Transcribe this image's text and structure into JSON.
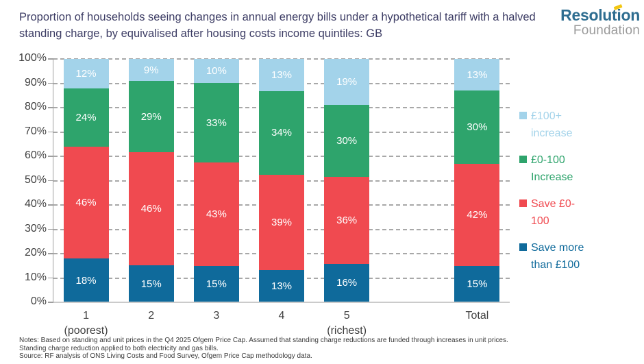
{
  "title": "Proportion of households seeing changes in annual energy bills under a hypothetical tariff with a halved standing charge, by equivalised after housing costs income quintiles: GB",
  "logo": {
    "primary": "Resolution",
    "secondary": "Foundation"
  },
  "colors": {
    "series_light_blue": "#A3D3EA",
    "series_green": "#2EA46C",
    "series_red": "#F04A50",
    "series_dark_blue": "#0F6A9B",
    "title_text": "#3C3C64",
    "axis_text": "#3F3F3F",
    "logo_teal": "#2E6D90",
    "logo_gray": "#9B9B9B",
    "logo_accent_yellow": "#F3C713"
  },
  "chart_data": {
    "type": "bar",
    "stacked": true,
    "unit": "%",
    "ylim": [
      0,
      100
    ],
    "y_tick_step": 10,
    "y_tick_labels": [
      "0%",
      "10%",
      "20%",
      "30%",
      "40%",
      "50%",
      "60%",
      "70%",
      "80%",
      "90%",
      "100%"
    ],
    "grid": "dashed-horizontal",
    "legend_position": "right",
    "n_slots": 7,
    "categories": [
      {
        "label": "1",
        "sublabel": "(poorest)",
        "slot": 0
      },
      {
        "label": "2",
        "slot": 1
      },
      {
        "label": "3",
        "slot": 2
      },
      {
        "label": "4",
        "slot": 3
      },
      {
        "label": "5",
        "sublabel": "(richest)",
        "slot": 4
      },
      {
        "label": "Total",
        "slot": 6
      }
    ],
    "series": [
      {
        "name": "Save more than £100",
        "color": "#0F6A9B",
        "values": [
          18,
          15,
          15,
          13,
          16,
          15
        ]
      },
      {
        "name": "Save £0-100",
        "color": "#F04A50",
        "values": [
          46,
          46,
          43,
          39,
          36,
          42
        ]
      },
      {
        "name": "£0-100 Increase",
        "color": "#2EA46C",
        "values": [
          24,
          29,
          33,
          34,
          30,
          30
        ]
      },
      {
        "name": "£100+ increase",
        "color": "#A3D3EA",
        "values": [
          12,
          9,
          10,
          13,
          19,
          13
        ]
      }
    ],
    "data_label_format": "{v}%"
  },
  "legend": {
    "items": [
      {
        "label": "£100+ increase",
        "color": "#A3D3EA"
      },
      {
        "label": "£0-100 Increase",
        "color": "#2EA46C"
      },
      {
        "label": "Save £0-100",
        "color": "#F04A50"
      },
      {
        "label": "Save more than £100",
        "color": "#0F6A9B"
      }
    ]
  },
  "notes": {
    "lines": [
      "Notes: Based on standing and unit prices in the Q4 2025 Ofgem Price Cap. Assumed that standing charge reductions are funded through increases in unit prices.",
      "Standing charge reduction applied to both electricity and gas bills.",
      "Source: RF analysis of ONS Living Costs and Food Survey, Ofgem Price Cap methodology data."
    ]
  }
}
